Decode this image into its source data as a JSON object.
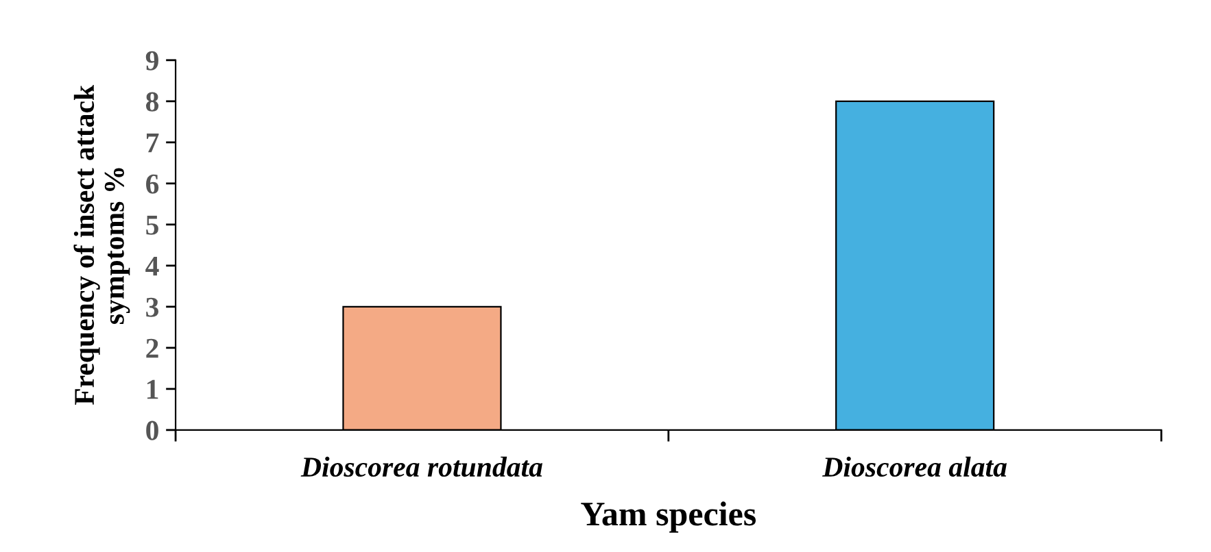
{
  "chart_data": {
    "type": "bar",
    "xlabel": "Yam species",
    "ylabel": "Frequency of insect attack\nsymptoms %",
    "categories": [
      "Dioscorea rotundata",
      "Dioscorea alata"
    ],
    "values": [
      3,
      8
    ],
    "colors": [
      "#f4aa85",
      "#45b0e0"
    ],
    "ylim": [
      0,
      9
    ],
    "yticks": [
      0,
      1,
      2,
      3,
      4,
      5,
      6,
      7,
      8,
      9
    ],
    "grid": false,
    "legend": false
  }
}
